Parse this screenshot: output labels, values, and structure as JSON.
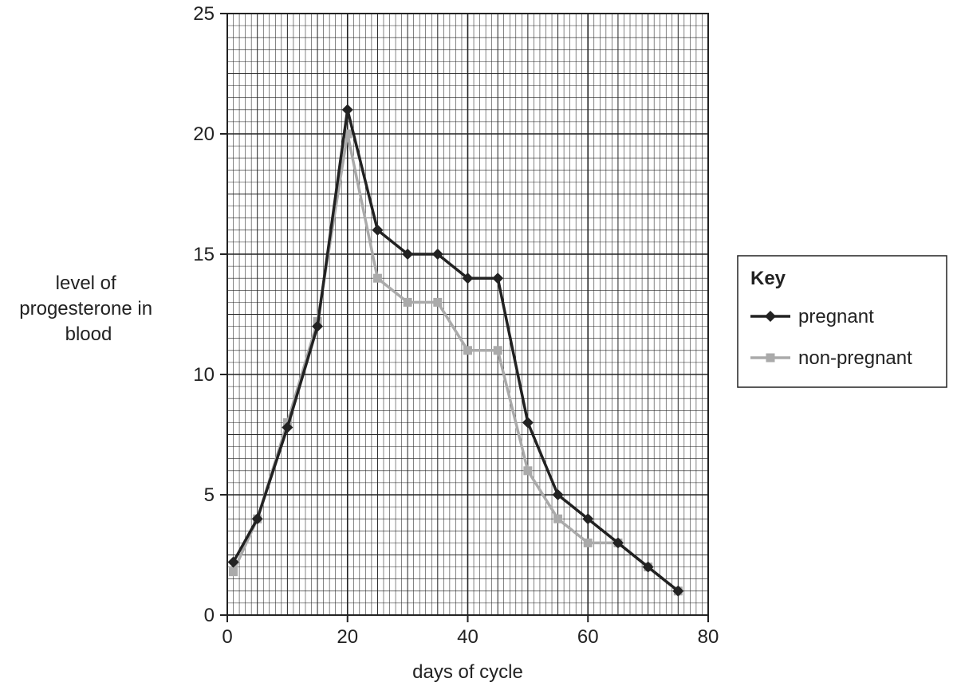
{
  "chart_data": {
    "type": "line",
    "title": "",
    "xlabel": "days of cycle",
    "ylabel_lines": [
      "level of",
      "progesterone in",
      "blood"
    ],
    "xlim": [
      0,
      80
    ],
    "ylim": [
      0,
      25
    ],
    "x_ticks": [
      0,
      20,
      40,
      60,
      80
    ],
    "y_ticks": [
      0,
      5,
      10,
      15,
      20,
      25
    ],
    "x_tick_labels": [
      "0",
      "20",
      "40",
      "60",
      "80"
    ],
    "y_tick_labels": [
      "0",
      "5",
      "10",
      "15",
      "20",
      "25"
    ],
    "grid": true,
    "legend": {
      "title": "Key",
      "placement": "right"
    },
    "series": [
      {
        "name": "pregnant",
        "color": "#222222",
        "marker": "diamond",
        "x": [
          1,
          5,
          10,
          15,
          20,
          25,
          30,
          35,
          40,
          45,
          50,
          55,
          60,
          65,
          70,
          75
        ],
        "y": [
          2.2,
          4,
          7.8,
          12,
          21,
          16,
          15,
          15,
          14,
          14,
          8,
          5,
          4,
          3,
          2,
          1
        ]
      },
      {
        "name": "non-pregnant",
        "color": "#aaaaaa",
        "marker": "square",
        "x": [
          1,
          5,
          10,
          15,
          20,
          25,
          30,
          35,
          40,
          45,
          50,
          55,
          60,
          65,
          70,
          75
        ],
        "y": [
          1.8,
          4,
          8,
          12.2,
          20,
          14,
          13,
          13,
          11,
          11,
          6,
          4,
          3,
          3,
          2,
          1
        ]
      }
    ]
  }
}
